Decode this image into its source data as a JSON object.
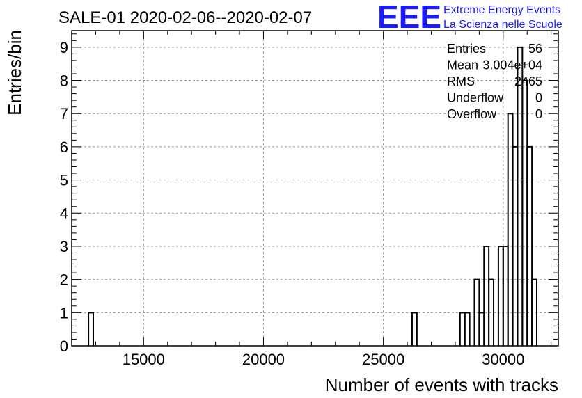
{
  "chart_data": {
    "type": "bar",
    "title": "SALE-01 2020-02-06--2020-02-07",
    "xlabel": "Number of events with tracks",
    "ylabel": "Entries/bin",
    "xlim": [
      12000,
      32300
    ],
    "ylim": [
      0,
      9.5
    ],
    "x_ticks": [
      "15000",
      "20000",
      "25000",
      "30000"
    ],
    "y_ticks": [
      "0",
      "1",
      "2",
      "3",
      "4",
      "5",
      "6",
      "7",
      "8",
      "9"
    ],
    "grid": true,
    "bin_width": 200,
    "bins": [
      {
        "x": 12800,
        "value": 1
      },
      {
        "x": 26300,
        "value": 1
      },
      {
        "x": 28300,
        "value": 1
      },
      {
        "x": 28500,
        "value": 1
      },
      {
        "x": 28900,
        "value": 2
      },
      {
        "x": 29100,
        "value": 1
      },
      {
        "x": 29300,
        "value": 3
      },
      {
        "x": 29500,
        "value": 2
      },
      {
        "x": 29900,
        "value": 3
      },
      {
        "x": 30100,
        "value": 3
      },
      {
        "x": 30300,
        "value": 7
      },
      {
        "x": 30500,
        "value": 6
      },
      {
        "x": 30700,
        "value": 9
      },
      {
        "x": 30900,
        "value": 8
      },
      {
        "x": 31100,
        "value": 6
      },
      {
        "x": 31300,
        "value": 2
      }
    ],
    "stats": [
      {
        "label": "Entries",
        "value": "56"
      },
      {
        "label": "Mean",
        "value": "3.004e+04"
      },
      {
        "label": "RMS",
        "value": "2465"
      },
      {
        "label": "Underflow",
        "value": "0"
      },
      {
        "label": "Overflow",
        "value": "0"
      }
    ]
  },
  "logo": {
    "letters": "EEE",
    "line1": "Extreme Energy Events",
    "line2": "La Scienza nelle Scuole",
    "color": "#1a1aff"
  }
}
